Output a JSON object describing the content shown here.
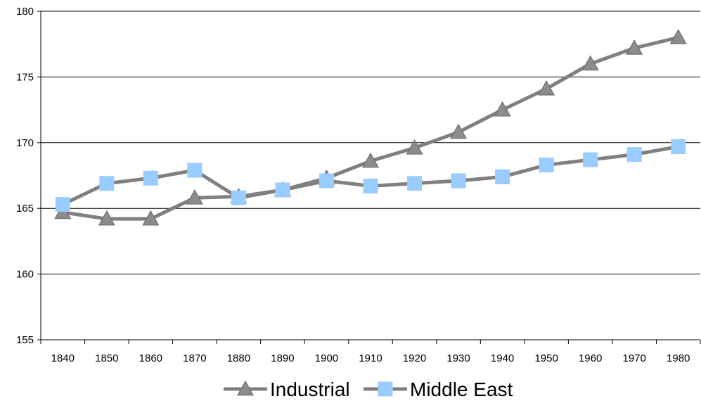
{
  "chart_data": {
    "type": "line",
    "title": "",
    "xlabel": "",
    "ylabel": "",
    "x": [
      "1840",
      "1850",
      "1860",
      "1870",
      "1880",
      "1890",
      "1900",
      "1910",
      "1920",
      "1930",
      "1940",
      "1950",
      "1960",
      "1970",
      "1980"
    ],
    "ylim": [
      155,
      180
    ],
    "yticks": [
      155,
      160,
      165,
      170,
      175,
      180
    ],
    "grid": "horizontal",
    "legend_position": "bottom",
    "series": [
      {
        "name": "Industrial",
        "marker": "triangle",
        "line_color": "#808080",
        "marker_color": "#8c8c8c",
        "values": [
          164.7,
          164.2,
          164.2,
          165.8,
          165.9,
          166.4,
          167.3,
          168.6,
          169.6,
          170.8,
          172.5,
          174.1,
          176.0,
          177.2,
          178.0
        ]
      },
      {
        "name": "Middle East",
        "marker": "square",
        "line_color": "#808080",
        "marker_color": "#99ccff",
        "values": [
          165.3,
          166.9,
          167.3,
          167.9,
          165.8,
          166.4,
          167.1,
          166.7,
          166.9,
          167.1,
          167.4,
          168.3,
          168.7,
          169.1,
          169.7
        ]
      }
    ]
  }
}
